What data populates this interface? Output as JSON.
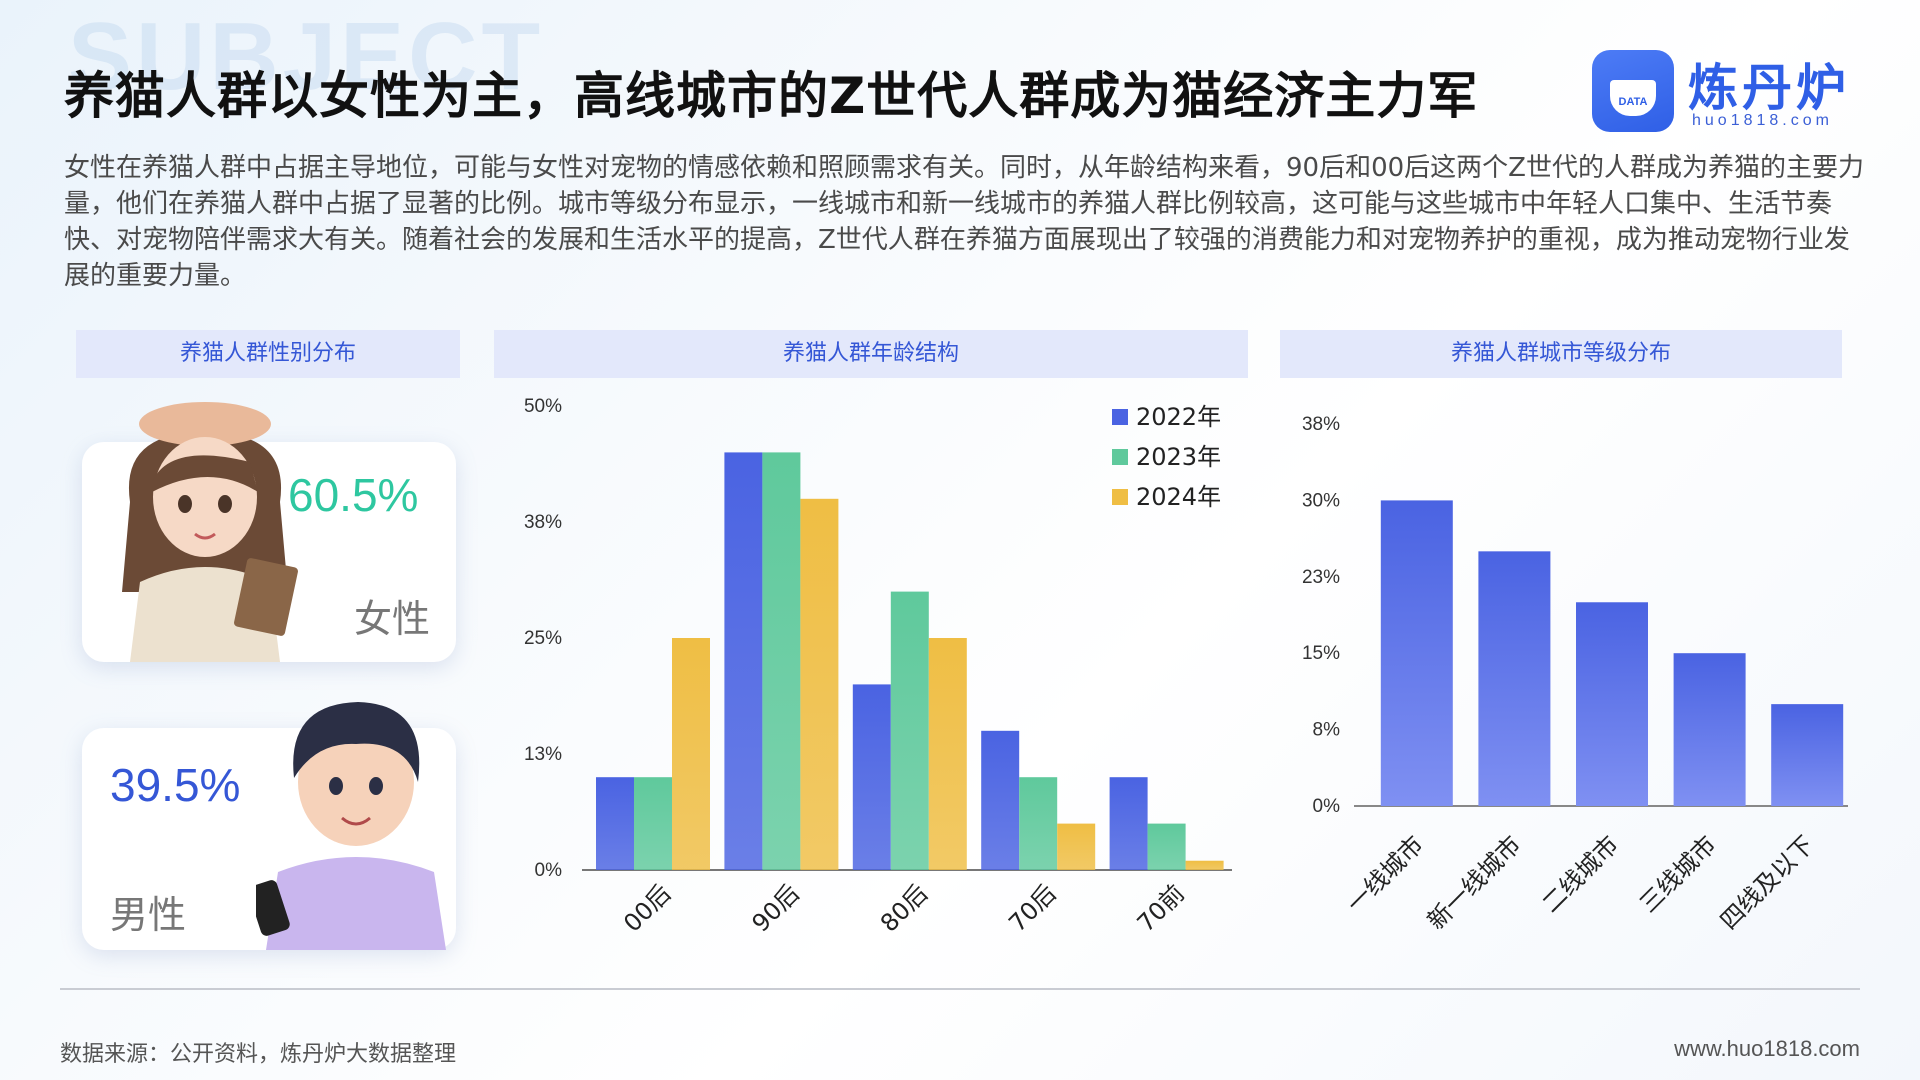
{
  "watermark": "SUBJECT",
  "title": "养猫人群以女性为主，高线城市的Z世代人群成为猫经济主力军",
  "brand": {
    "name": "炼丹炉",
    "url": "huo1818.com",
    "badge": "DATA",
    "accent": "#2f5fe6"
  },
  "description": "女性在养猫人群中占据主导地位，可能与女性对宠物的情感依赖和照顾需求有关。同时，从年龄结构来看，90后和00后这两个Z世代的人群成为养猫的主要力量，他们在养猫人群中占据了显著的比例。城市等级分布显示，一线城市和新一线城市的养猫人群比例较高，这可能与这些城市中年轻人口集中、生活节奏快、对宠物陪伴需求大有关。随着社会的发展和生活水平的提高，Z世代人群在养猫方面展现出了较强的消费能力和对宠物养护的重视，成为推动宠物行业发展的重要力量。",
  "panels": {
    "gender": "养猫人群性别分布",
    "age": "养猫人群年龄结构",
    "city": "养猫人群城市等级分布"
  },
  "gender": {
    "female": {
      "pct": "60.5%",
      "label": "女性",
      "color": "#2ec7a0",
      "avatar": "female-avatar-icon"
    },
    "male": {
      "pct": "39.5%",
      "label": "男性",
      "color": "#3557d6",
      "avatar": "male-avatar-icon"
    }
  },
  "chart_data": [
    {
      "type": "pie",
      "categories": [
        "女性",
        "男性"
      ],
      "values": [
        60.5,
        39.5
      ]
    },
    {
      "type": "bar",
      "title": "养猫人群年龄结构",
      "categories": [
        "00后",
        "90后",
        "80后",
        "70后",
        "70前"
      ],
      "series": [
        {
          "name": "2022年",
          "values": [
            10,
            45,
            20,
            15,
            10
          ],
          "color": "#4a63e2"
        },
        {
          "name": "2023年",
          "values": [
            10,
            45,
            30,
            10,
            5
          ],
          "color": "#5fc99c"
        },
        {
          "name": "2024年",
          "values": [
            25,
            40,
            25,
            5,
            1
          ],
          "color": "#efbe44"
        }
      ],
      "yticks": [
        "0%",
        "13%",
        "25%",
        "38%",
        "50%"
      ],
      "ylim": [
        0,
        50
      ],
      "legend": "top-right",
      "grid": false
    },
    {
      "type": "bar",
      "title": "养猫人群城市等级分布",
      "categories": [
        "一线城市",
        "新一线城市",
        "二线城市",
        "三线城市",
        "四线及以下"
      ],
      "values": [
        30,
        25,
        20,
        15,
        10
      ],
      "color": "#4a63e2",
      "yticks": [
        "0%",
        "8%",
        "15%",
        "23%",
        "30%",
        "38%"
      ],
      "ylim": [
        0,
        37.5
      ],
      "grid": false
    }
  ],
  "footer": {
    "source": "数据来源：公开资料，炼丹炉大数据整理",
    "site": "www.huo1818.com"
  }
}
